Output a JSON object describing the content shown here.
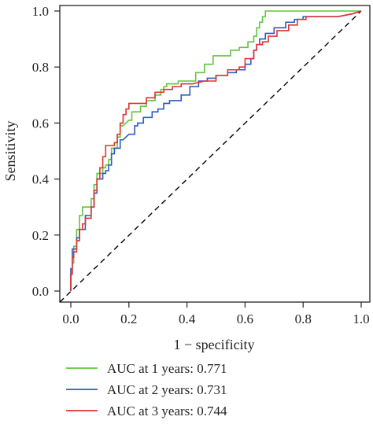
{
  "chart_data": {
    "type": "line",
    "xlabel": "1 − specificity",
    "ylabel": "Sensitivity",
    "xlim": [
      0,
      1
    ],
    "ylim": [
      0,
      1
    ],
    "x_ticks": [
      0.0,
      0.2,
      0.4,
      0.6,
      0.8,
      1.0
    ],
    "y_ticks": [
      0.0,
      0.2,
      0.4,
      0.6,
      0.8,
      1.0
    ],
    "x_tick_labels": [
      "0.0",
      "0.2",
      "0.4",
      "0.6",
      "0.8",
      "1.0"
    ],
    "y_tick_labels": [
      "0.0",
      "0.2",
      "0.4",
      "0.6",
      "0.8",
      "1.0"
    ],
    "grid": false,
    "legend_position": "bottom-left, below the plot",
    "reference_line": {
      "style": "dashed",
      "color": "#000000",
      "points": [
        [
          0,
          0
        ],
        [
          1,
          1
        ]
      ]
    },
    "series": [
      {
        "name": "AUC at 1 years: 0.771",
        "color": "#5fc63a",
        "points": [
          [
            0,
            0
          ],
          [
            0,
            0.06
          ],
          [
            0.005,
            0.06
          ],
          [
            0.005,
            0.1
          ],
          [
            0.01,
            0.1
          ],
          [
            0.01,
            0.16
          ],
          [
            0.02,
            0.16
          ],
          [
            0.02,
            0.22
          ],
          [
            0.03,
            0.22
          ],
          [
            0.03,
            0.27
          ],
          [
            0.04,
            0.27
          ],
          [
            0.04,
            0.3
          ],
          [
            0.06,
            0.3
          ],
          [
            0.07,
            0.3
          ],
          [
            0.07,
            0.33
          ],
          [
            0.08,
            0.33
          ],
          [
            0.08,
            0.38
          ],
          [
            0.09,
            0.38
          ],
          [
            0.09,
            0.42
          ],
          [
            0.1,
            0.42
          ],
          [
            0.11,
            0.42
          ],
          [
            0.11,
            0.44
          ],
          [
            0.12,
            0.44
          ],
          [
            0.12,
            0.45
          ],
          [
            0.13,
            0.45
          ],
          [
            0.13,
            0.47
          ],
          [
            0.14,
            0.47
          ],
          [
            0.14,
            0.51
          ],
          [
            0.15,
            0.51
          ],
          [
            0.16,
            0.51
          ],
          [
            0.16,
            0.55
          ],
          [
            0.17,
            0.55
          ],
          [
            0.17,
            0.59
          ],
          [
            0.18,
            0.59
          ],
          [
            0.2,
            0.61
          ],
          [
            0.21,
            0.61
          ],
          [
            0.21,
            0.64
          ],
          [
            0.24,
            0.64
          ],
          [
            0.24,
            0.66
          ],
          [
            0.26,
            0.66
          ],
          [
            0.26,
            0.68
          ],
          [
            0.29,
            0.68
          ],
          [
            0.29,
            0.7
          ],
          [
            0.31,
            0.7
          ],
          [
            0.31,
            0.72
          ],
          [
            0.32,
            0.72
          ],
          [
            0.32,
            0.73
          ],
          [
            0.33,
            0.73
          ],
          [
            0.33,
            0.74
          ],
          [
            0.37,
            0.74
          ],
          [
            0.37,
            0.75
          ],
          [
            0.41,
            0.75
          ],
          [
            0.43,
            0.75
          ],
          [
            0.43,
            0.78
          ],
          [
            0.46,
            0.78
          ],
          [
            0.46,
            0.81
          ],
          [
            0.49,
            0.81
          ],
          [
            0.49,
            0.84
          ],
          [
            0.53,
            0.84
          ],
          [
            0.55,
            0.84
          ],
          [
            0.55,
            0.86
          ],
          [
            0.58,
            0.86
          ],
          [
            0.58,
            0.87
          ],
          [
            0.61,
            0.87
          ],
          [
            0.61,
            0.89
          ],
          [
            0.63,
            0.89
          ],
          [
            0.63,
            0.91
          ],
          [
            0.64,
            0.91
          ],
          [
            0.64,
            0.94
          ],
          [
            0.65,
            0.94
          ],
          [
            0.65,
            0.96
          ],
          [
            0.66,
            0.96
          ],
          [
            0.66,
            0.98
          ],
          [
            0.67,
            0.98
          ],
          [
            0.67,
            1.0
          ],
          [
            0.73,
            1.0
          ],
          [
            0.8,
            1.0
          ],
          [
            0.86,
            1.0
          ],
          [
            0.9,
            1.0
          ],
          [
            0.93,
            1.0
          ],
          [
            1.0,
            1.0
          ]
        ]
      },
      {
        "name": "AUC at 2 years: 0.731",
        "color": "#2a5cbf",
        "points": [
          [
            0,
            0
          ],
          [
            0,
            0.08
          ],
          [
            0.005,
            0.08
          ],
          [
            0.005,
            0.15
          ],
          [
            0.01,
            0.15
          ],
          [
            0.01,
            0.15
          ],
          [
            0.02,
            0.15
          ],
          [
            0.02,
            0.19
          ],
          [
            0.03,
            0.19
          ],
          [
            0.03,
            0.22
          ],
          [
            0.04,
            0.22
          ],
          [
            0.04,
            0.22
          ],
          [
            0.05,
            0.22
          ],
          [
            0.05,
            0.27
          ],
          [
            0.06,
            0.27
          ],
          [
            0.07,
            0.27
          ],
          [
            0.07,
            0.3
          ],
          [
            0.08,
            0.3
          ],
          [
            0.08,
            0.35
          ],
          [
            0.09,
            0.35
          ],
          [
            0.09,
            0.4
          ],
          [
            0.1,
            0.4
          ],
          [
            0.11,
            0.4
          ],
          [
            0.11,
            0.42
          ],
          [
            0.12,
            0.42
          ],
          [
            0.12,
            0.43
          ],
          [
            0.13,
            0.43
          ],
          [
            0.13,
            0.45
          ],
          [
            0.14,
            0.45
          ],
          [
            0.14,
            0.49
          ],
          [
            0.15,
            0.49
          ],
          [
            0.15,
            0.51
          ],
          [
            0.17,
            0.51
          ],
          [
            0.17,
            0.54
          ],
          [
            0.18,
            0.54
          ],
          [
            0.2,
            0.56
          ],
          [
            0.22,
            0.56
          ],
          [
            0.22,
            0.59
          ],
          [
            0.23,
            0.59
          ],
          [
            0.23,
            0.6
          ],
          [
            0.25,
            0.6
          ],
          [
            0.25,
            0.62
          ],
          [
            0.28,
            0.62
          ],
          [
            0.28,
            0.64
          ],
          [
            0.3,
            0.64
          ],
          [
            0.3,
            0.65
          ],
          [
            0.32,
            0.65
          ],
          [
            0.32,
            0.67
          ],
          [
            0.34,
            0.67
          ],
          [
            0.34,
            0.68
          ],
          [
            0.38,
            0.68
          ],
          [
            0.38,
            0.7
          ],
          [
            0.41,
            0.7
          ],
          [
            0.41,
            0.73
          ],
          [
            0.44,
            0.73
          ],
          [
            0.44,
            0.75
          ],
          [
            0.47,
            0.75
          ],
          [
            0.47,
            0.76
          ],
          [
            0.5,
            0.76
          ],
          [
            0.5,
            0.77
          ],
          [
            0.54,
            0.77
          ],
          [
            0.54,
            0.78
          ],
          [
            0.57,
            0.78
          ],
          [
            0.57,
            0.79
          ],
          [
            0.6,
            0.79
          ],
          [
            0.6,
            0.81
          ],
          [
            0.62,
            0.81
          ],
          [
            0.62,
            0.83
          ],
          [
            0.63,
            0.83
          ],
          [
            0.63,
            0.86
          ],
          [
            0.64,
            0.86
          ],
          [
            0.64,
            0.88
          ],
          [
            0.65,
            0.88
          ],
          [
            0.65,
            0.9
          ],
          [
            0.67,
            0.9
          ],
          [
            0.67,
            0.92
          ],
          [
            0.7,
            0.92
          ],
          [
            0.7,
            0.94
          ],
          [
            0.74,
            0.94
          ],
          [
            0.74,
            0.96
          ],
          [
            0.77,
            0.96
          ],
          [
            0.77,
            0.97
          ],
          [
            0.8,
            0.97
          ],
          [
            0.8,
            0.98
          ],
          [
            0.86,
            0.98
          ],
          [
            0.92,
            0.98
          ],
          [
            0.97,
            0.99
          ],
          [
            1.0,
            1.0
          ]
        ]
      },
      {
        "name": "AUC at 3 years: 0.744",
        "color": "#e0332e",
        "points": [
          [
            0,
            0
          ],
          [
            0,
            0.06
          ],
          [
            0.005,
            0.06
          ],
          [
            0.005,
            0.12
          ],
          [
            0.01,
            0.12
          ],
          [
            0.01,
            0.14
          ],
          [
            0.02,
            0.14
          ],
          [
            0.02,
            0.18
          ],
          [
            0.03,
            0.18
          ],
          [
            0.03,
            0.22
          ],
          [
            0.04,
            0.22
          ],
          [
            0.04,
            0.24
          ],
          [
            0.05,
            0.24
          ],
          [
            0.05,
            0.26
          ],
          [
            0.06,
            0.26
          ],
          [
            0.07,
            0.26
          ],
          [
            0.07,
            0.3
          ],
          [
            0.08,
            0.3
          ],
          [
            0.08,
            0.36
          ],
          [
            0.09,
            0.36
          ],
          [
            0.09,
            0.4
          ],
          [
            0.1,
            0.4
          ],
          [
            0.1,
            0.44
          ],
          [
            0.11,
            0.44
          ],
          [
            0.11,
            0.48
          ],
          [
            0.12,
            0.48
          ],
          [
            0.12,
            0.52
          ],
          [
            0.15,
            0.52
          ],
          [
            0.15,
            0.53
          ],
          [
            0.16,
            0.53
          ],
          [
            0.16,
            0.56
          ],
          [
            0.17,
            0.56
          ],
          [
            0.17,
            0.6
          ],
          [
            0.18,
            0.6
          ],
          [
            0.18,
            0.63
          ],
          [
            0.19,
            0.63
          ],
          [
            0.19,
            0.65
          ],
          [
            0.2,
            0.65
          ],
          [
            0.2,
            0.67
          ],
          [
            0.24,
            0.67
          ],
          [
            0.26,
            0.67
          ],
          [
            0.26,
            0.69
          ],
          [
            0.29,
            0.69
          ],
          [
            0.29,
            0.71
          ],
          [
            0.32,
            0.71
          ],
          [
            0.32,
            0.72
          ],
          [
            0.35,
            0.72
          ],
          [
            0.35,
            0.73
          ],
          [
            0.38,
            0.73
          ],
          [
            0.38,
            0.74
          ],
          [
            0.42,
            0.74
          ],
          [
            0.46,
            0.75
          ],
          [
            0.5,
            0.75
          ],
          [
            0.5,
            0.77
          ],
          [
            0.54,
            0.77
          ],
          [
            0.54,
            0.79
          ],
          [
            0.58,
            0.79
          ],
          [
            0.58,
            0.8
          ],
          [
            0.6,
            0.8
          ],
          [
            0.6,
            0.83
          ],
          [
            0.63,
            0.83
          ],
          [
            0.63,
            0.86
          ],
          [
            0.64,
            0.86
          ],
          [
            0.64,
            0.88
          ],
          [
            0.66,
            0.88
          ],
          [
            0.66,
            0.89
          ],
          [
            0.68,
            0.89
          ],
          [
            0.68,
            0.91
          ],
          [
            0.71,
            0.91
          ],
          [
            0.71,
            0.93
          ],
          [
            0.75,
            0.93
          ],
          [
            0.75,
            0.95
          ],
          [
            0.78,
            0.95
          ],
          [
            0.78,
            0.97
          ],
          [
            0.81,
            0.97
          ],
          [
            0.81,
            0.98
          ],
          [
            0.87,
            0.98
          ],
          [
            0.92,
            0.98
          ],
          [
            0.97,
            0.99
          ],
          [
            1.0,
            1.0
          ]
        ]
      }
    ]
  }
}
